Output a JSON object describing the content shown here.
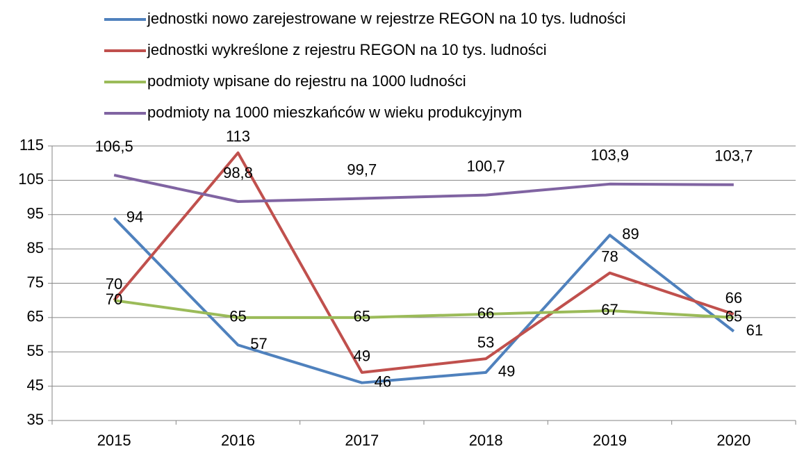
{
  "chart_data": {
    "type": "line",
    "categories": [
      "2015",
      "2016",
      "2017",
      "2018",
      "2019",
      "2020"
    ],
    "series": [
      {
        "name": "jednostki nowo zarejestrowane w rejestrze REGON na 10 tys. ludności",
        "color": "#4f81bd",
        "values": [
          94,
          57,
          46,
          49,
          89,
          61
        ]
      },
      {
        "name": "jednostki wykreślone z rejestru REGON na 10 tys. ludności",
        "color": "#c0504d",
        "values": [
          70,
          113,
          49,
          53,
          78,
          66
        ]
      },
      {
        "name": "podmioty wpisane do rejestru na 1000 ludności",
        "color": "#9bbb59",
        "values": [
          70,
          65,
          65,
          66,
          67,
          65
        ]
      },
      {
        "name": "podmioty na 1000 mieszkańców w wieku produkcyjnym",
        "color": "#8064a2",
        "values": [
          106.5,
          98.8,
          99.7,
          100.7,
          103.9,
          103.7
        ],
        "value_labels": [
          "106,5",
          "98,8",
          "99,7",
          "100,7",
          "103,9",
          "103,7"
        ]
      }
    ],
    "ylim": [
      35,
      115
    ],
    "yticks": [
      35,
      45,
      55,
      65,
      75,
      85,
      95,
      105,
      115
    ],
    "grid": true,
    "legend": "top"
  }
}
